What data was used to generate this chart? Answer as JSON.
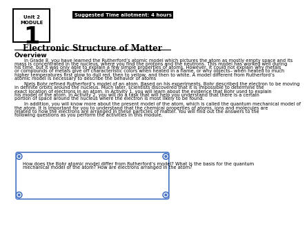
{
  "bg_color": "#ffffff",
  "unit_label": "Unit 2",
  "module_label": "MODULE",
  "module_number": "1",
  "suggested_time": "Suggested Time allotment: 4 hours",
  "title": "Electronic Structure of Matter",
  "overview_label": "Overview",
  "para1": "In Grade 8, you have learned the Rutherford’s  atomic  model which pictures  the atom as mostly  empty space and its mass is concentrated  in the nucleus,  where you find  the protons and the neutrons.  This model has worked well during  his time,  but it was only able to explain  a few simple  properties  of atoms. However,  It could not explain  why metals or compounds  of metals  give  off characteristic  colors  when heated  in a flame,  or why objects– when heated to much higher  temperatures  first  glow  to dull red, then to yellow,  and then to white.  A model different  from Rutherford’s  atomic model is necessary  to describe the behavior  of atoms",
  "para2": "Niels Bohr refined  Rutherford’s  model of an atom. Based on his experiments,  Bohr described the electron to be moving  in definite  orbits around the nucleus.  Much later, scientists  discovered that it is impossible  to determine  the exact location of electrons in an atom. In Activity  1, you will  learn about the evidence  that Bohr used to explain  his model of the atom. In Activity  2, you will  do a task that will  help you understand  that there is a certain portion of space around the nucleus  where the electron is most likely  to be found.",
  "para3": "In addition,  you will  know more  about the present model of the atom, which  is called the quantum  mechanical  model of the atom. It is important  for you to understand  that the chemical  properties of atoms, ions  and molecules  are related to how the electrons  are arranged in these particles  of matter.  You will  find  out the answers to the following questions  as you perform the activities  in this module.",
  "box_text": "How does the Bohr atomic  model differ  from Rutherford’s  model?  What is the basis for the quantum  mechanical  model of the atom? How are electrons  arranged in the atom?",
  "box_border_color": "#4472C4",
  "header_box_color": "#000000",
  "title_underline_color": "#000000"
}
